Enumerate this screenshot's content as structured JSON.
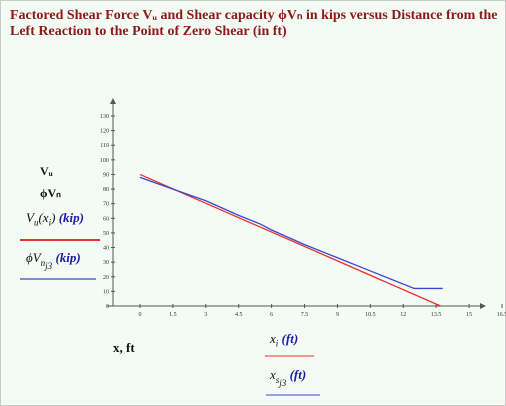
{
  "title": "Factored Shear Force Vᵤ and Shear capacity ϕVₙ in kips versus Distance from the Left Reaction to the Point of Zero Shear (in ft)",
  "legend": {
    "vu_symbol": "Vᵤ",
    "phivn_symbol": "ϕVₙ",
    "vu_expr_fn": "V",
    "vu_expr_sub": "u",
    "vu_expr_arg": "x",
    "vu_expr_arg_sub": "i",
    "vu_unit": "(kip)",
    "phivn_expr_fn": "ϕV",
    "phivn_expr_sub": "n",
    "phivn_expr_sub2": "j3",
    "phivn_unit": "(kip)"
  },
  "xaxis": {
    "expr1": "x",
    "expr1_sub": "i",
    "expr1_unit": "(ft)",
    "expr2": "x",
    "expr2_sub": "s",
    "expr2_sub2": "j3",
    "expr2_unit": "(ft)",
    "side_label": "x, ft"
  },
  "colors": {
    "vu": "#e8302c",
    "phivn": "#3a46d8",
    "title": "#8b1a1a",
    "background": "#f4faf4"
  },
  "chart_data": {
    "type": "line",
    "title": "Factored Shear Force Vᵤ and Shear capacity ϕVₙ in kips versus Distance from the Left Reaction to the Point of Zero Shear (in ft)",
    "xlim": [
      0,
      16.5
    ],
    "ylim": [
      0,
      130
    ],
    "xticks": [
      0,
      1.5,
      3,
      4.5,
      6,
      7.5,
      9,
      10.5,
      12,
      13.5,
      15,
      16.5
    ],
    "xtick_labels": [
      "0",
      "1.5",
      "3",
      "4.5",
      "6",
      "7.5",
      "9",
      "10.5",
      "12",
      "13.5",
      "15",
      "16.5"
    ],
    "yticks": [
      0,
      10,
      20,
      30,
      40,
      50,
      60,
      70,
      80,
      90,
      100,
      110,
      120,
      130
    ],
    "ytick_labels": [
      "0",
      "10",
      "20",
      "30",
      "40",
      "50",
      "60",
      "70",
      "80",
      "90",
      "100",
      "110",
      "120",
      "130"
    ],
    "grid": false,
    "series": [
      {
        "name": "Vᵤ",
        "color": "#e8302c",
        "x": [
          0,
          13.7
        ],
        "y": [
          90,
          0
        ]
      },
      {
        "name": "ϕVₙ",
        "color": "#3a46d8",
        "x": [
          0,
          1.5,
          3,
          4.5,
          5.5,
          6,
          7.5,
          9,
          10.5,
          12.5,
          13.8
        ],
        "y": [
          88,
          80,
          72,
          62,
          56,
          52,
          42,
          33,
          24,
          12,
          12
        ]
      }
    ]
  }
}
